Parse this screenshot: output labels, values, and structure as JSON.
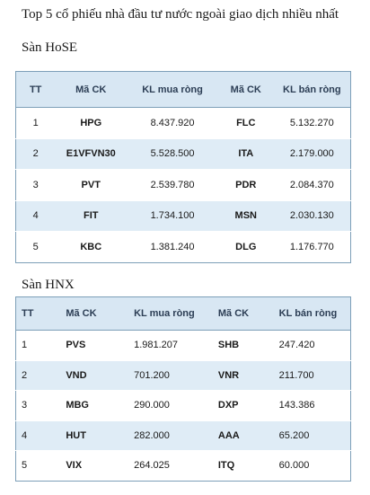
{
  "title": "Top 5 cổ phiếu nhà đầu tư nước ngoài giao dịch nhiều nhất",
  "hose": {
    "label": "Sàn HoSE",
    "headers": [
      "TT",
      "Mã CK",
      "KL mua ròng",
      "Mã CK",
      "KL bán ròng"
    ],
    "rows": [
      [
        "1",
        "HPG",
        "8.437.920",
        "FLC",
        "5.132.270"
      ],
      [
        "2",
        "E1VFVN30",
        "5.528.500",
        "ITA",
        "2.179.000"
      ],
      [
        "3",
        "PVT",
        "2.539.780",
        "PDR",
        "2.084.370"
      ],
      [
        "4",
        "FIT",
        "1.734.100",
        "MSN",
        "2.030.130"
      ],
      [
        "5",
        "KBC",
        "1.381.240",
        "DLG",
        "1.176.770"
      ]
    ]
  },
  "hnx": {
    "label": "Sàn HNX",
    "headers": [
      "TT",
      "Mã CK",
      "KL mua ròng",
      "Mã CK",
      "KL bán ròng"
    ],
    "rows": [
      [
        "1",
        "PVS",
        "1.981.207",
        "SHB",
        "247.420"
      ],
      [
        "2",
        "VND",
        "701.200",
        "VNR",
        "211.700"
      ],
      [
        "3",
        "MBG",
        "290.000",
        "DXP",
        "143.386"
      ],
      [
        "4",
        "HUT",
        "282.000",
        "AAA",
        "65.200"
      ],
      [
        "5",
        "VIX",
        "264.025",
        "ITQ",
        "60.000"
      ]
    ]
  },
  "colors": {
    "header_bg": "#d8e7f3",
    "alt_row_bg": "#dfecf6",
    "border": "#7d9fb8"
  }
}
